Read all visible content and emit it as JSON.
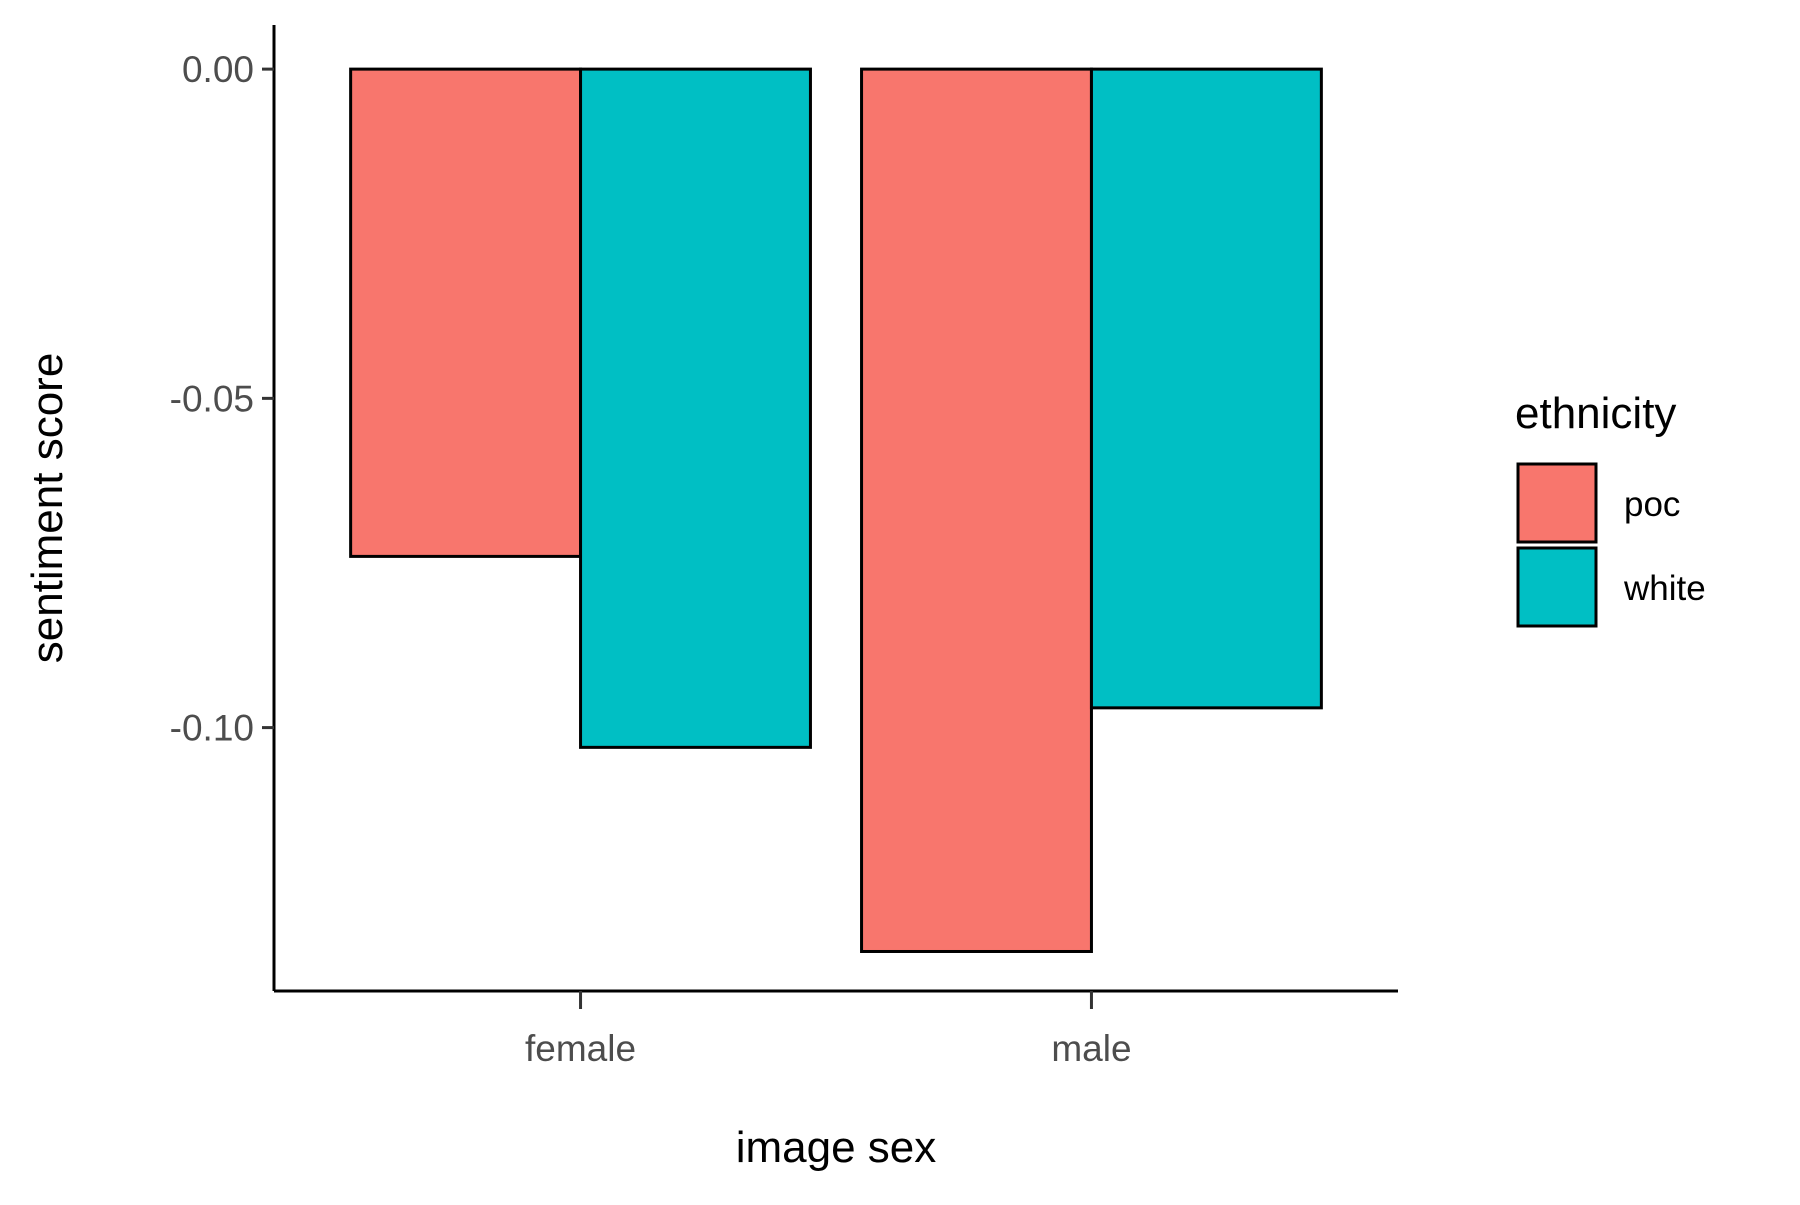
{
  "chart_data": {
    "type": "bar",
    "title": "",
    "xlabel": "image sex",
    "ylabel": "sentiment score",
    "categories": [
      "female",
      "male"
    ],
    "series": [
      {
        "name": "poc",
        "color": "#F8766D",
        "values": [
          -0.074,
          -0.134
        ]
      },
      {
        "name": "white",
        "color": "#00BFC4",
        "values": [
          -0.103,
          -0.097
        ]
      }
    ],
    "ylim": [
      -0.14,
      0.0067
    ],
    "yticks": [
      0.0,
      -0.05,
      -0.1
    ],
    "ytick_labels": [
      "0.00",
      "-0.05",
      "-0.10"
    ],
    "grid": false,
    "legend": {
      "title": "ethnicity",
      "position": "right"
    }
  }
}
